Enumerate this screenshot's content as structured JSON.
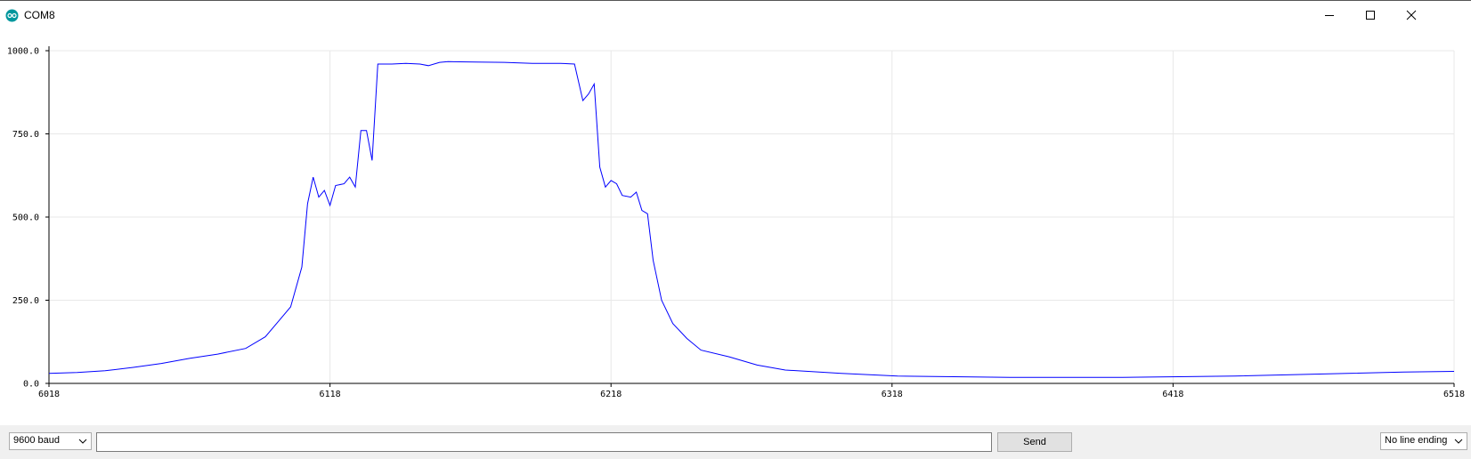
{
  "window": {
    "title": "COM8",
    "icon": "arduino-icon",
    "controls": [
      "minimize-icon",
      "maximize-icon",
      "close-icon"
    ]
  },
  "bottom_bar": {
    "baud_selected": "9600 baud",
    "send_input_value": "",
    "send_label": "Send",
    "line_ending_selected": "No line ending"
  },
  "colors": {
    "series": "#0000ff",
    "grid": "#e8e8e8",
    "icon_teal": "#00979d"
  },
  "chart_data": {
    "type": "line",
    "xlim": [
      6018,
      6518
    ],
    "ylim": [
      0,
      1000
    ],
    "x_ticks": [
      "6018",
      "6118",
      "6218",
      "6318",
      "6418",
      "6518"
    ],
    "y_ticks": [
      "1000.0",
      "750.0",
      "500.0",
      "250.0",
      "0.0"
    ],
    "grid": true,
    "series": [
      {
        "points": [
          [
            6018,
            30
          ],
          [
            6028,
            33
          ],
          [
            6038,
            38
          ],
          [
            6048,
            48
          ],
          [
            6058,
            60
          ],
          [
            6068,
            75
          ],
          [
            6078,
            88
          ],
          [
            6088,
            105
          ],
          [
            6095,
            140
          ],
          [
            6100,
            190
          ],
          [
            6104,
            230
          ],
          [
            6108,
            350
          ],
          [
            6110,
            540
          ],
          [
            6112,
            620
          ],
          [
            6114,
            560
          ],
          [
            6116,
            580
          ],
          [
            6118,
            535
          ],
          [
            6120,
            595
          ],
          [
            6123,
            600
          ],
          [
            6125,
            620
          ],
          [
            6127,
            590
          ],
          [
            6129,
            760
          ],
          [
            6131,
            760
          ],
          [
            6133,
            670
          ],
          [
            6135,
            960
          ],
          [
            6140,
            960
          ],
          [
            6145,
            962
          ],
          [
            6150,
            960
          ],
          [
            6153,
            955
          ],
          [
            6157,
            965
          ],
          [
            6160,
            967
          ],
          [
            6170,
            966
          ],
          [
            6180,
            965
          ],
          [
            6190,
            962
          ],
          [
            6200,
            962
          ],
          [
            6205,
            960
          ],
          [
            6208,
            850
          ],
          [
            6210,
            870
          ],
          [
            6212,
            900
          ],
          [
            6214,
            650
          ],
          [
            6216,
            590
          ],
          [
            6218,
            610
          ],
          [
            6220,
            600
          ],
          [
            6222,
            565
          ],
          [
            6225,
            560
          ],
          [
            6227,
            575
          ],
          [
            6229,
            520
          ],
          [
            6231,
            510
          ],
          [
            6233,
            370
          ],
          [
            6236,
            250
          ],
          [
            6240,
            180
          ],
          [
            6245,
            135
          ],
          [
            6250,
            100
          ],
          [
            6260,
            80
          ],
          [
            6270,
            55
          ],
          [
            6280,
            40
          ],
          [
            6300,
            30
          ],
          [
            6320,
            22
          ],
          [
            6340,
            20
          ],
          [
            6360,
            18
          ],
          [
            6380,
            18
          ],
          [
            6400,
            18
          ],
          [
            6420,
            20
          ],
          [
            6440,
            22
          ],
          [
            6460,
            26
          ],
          [
            6480,
            30
          ],
          [
            6500,
            34
          ],
          [
            6518,
            36
          ]
        ]
      }
    ]
  }
}
